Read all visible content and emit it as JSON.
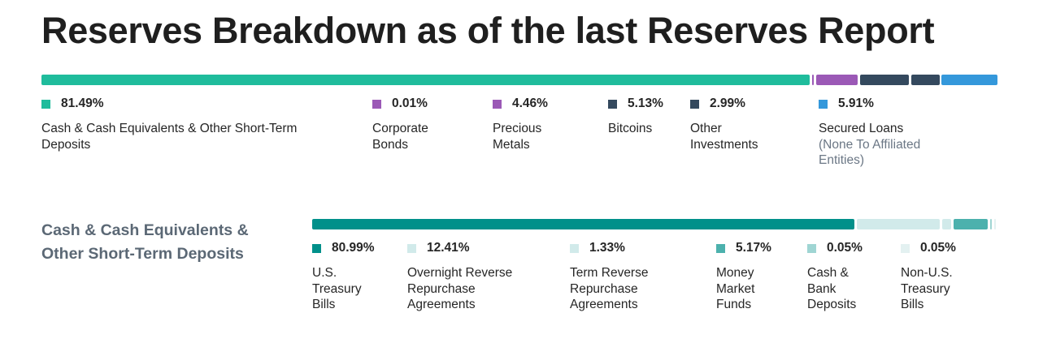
{
  "title": "Reserves Breakdown as of the last Reserves Report",
  "top": {
    "items": [
      {
        "pct": "81.49%",
        "label": "Cash & Cash Equivalents & Other Short-Term Deposits",
        "note": "",
        "color": "#1fbc9c",
        "value": 81.49
      },
      {
        "pct": "0.01%",
        "label": "Corporate Bonds",
        "note": "",
        "color": "#9b59b6",
        "value": 0.01
      },
      {
        "pct": "4.46%",
        "label": "Precious Metals",
        "note": "",
        "color": "#9b59b6",
        "value": 4.46
      },
      {
        "pct": "5.13%",
        "label": "Bitcoins",
        "note": "",
        "color": "#34495e",
        "value": 5.13
      },
      {
        "pct": "2.99%",
        "label": "Other Investments",
        "note": "",
        "color": "#34495e",
        "value": 2.99
      },
      {
        "pct": "5.91%",
        "label": "Secured Loans",
        "note": "(None To Affiliated Entities)",
        "color": "#3498db",
        "value": 5.91
      }
    ]
  },
  "sub": {
    "title": "Cash & Cash Equivalents & Other Short-Term Deposits",
    "items": [
      {
        "pct": "80.99%",
        "label": "U.S. Treasury Bills",
        "color": "#00908a",
        "value": 80.99
      },
      {
        "pct": "12.41%",
        "label": "Overnight Reverse Repurchase Agreements",
        "color": "#d1eaea",
        "value": 12.41
      },
      {
        "pct": "1.33%",
        "label": "Term Reverse Repurchase Agreements",
        "color": "#d1eaea",
        "value": 1.33
      },
      {
        "pct": "5.17%",
        "label": "Money Market Funds",
        "color": "#4cb1ad",
        "value": 5.17
      },
      {
        "pct": "0.05%",
        "label": "Cash & Bank Deposits",
        "color": "#9fd5d3",
        "value": 0.05
      },
      {
        "pct": "0.05%",
        "label": "Non-U.S. Treasury Bills",
        "color": "#e3f1f1",
        "value": 0.05
      }
    ]
  },
  "chart_data": [
    {
      "type": "bar",
      "title": "Reserves Breakdown as of the last Reserves Report",
      "categories": [
        "Cash & Cash Equivalents & Other Short-Term Deposits",
        "Corporate Bonds",
        "Precious Metals",
        "Bitcoins",
        "Other Investments",
        "Secured Loans"
      ],
      "values": [
        81.49,
        0.01,
        4.46,
        5.13,
        2.99,
        5.91
      ],
      "orientation": "horizontal stacked 100%"
    },
    {
      "type": "bar",
      "title": "Cash & Cash Equivalents & Other Short-Term Deposits",
      "categories": [
        "U.S. Treasury Bills",
        "Overnight Reverse Repurchase Agreements",
        "Term Reverse Repurchase Agreements",
        "Money Market Funds",
        "Cash & Bank Deposits",
        "Non-U.S. Treasury Bills"
      ],
      "values": [
        80.99,
        12.41,
        1.33,
        5.17,
        0.05,
        0.05
      ],
      "orientation": "horizontal stacked 100%"
    }
  ]
}
